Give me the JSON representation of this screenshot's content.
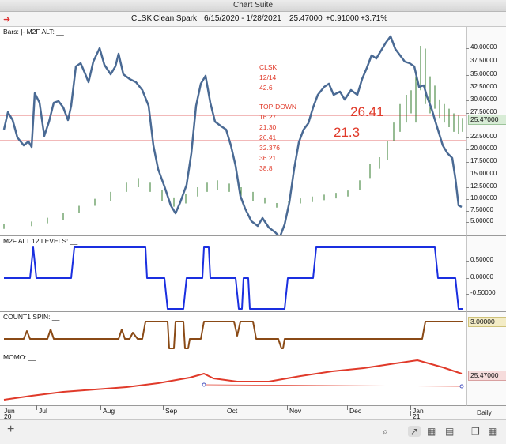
{
  "window": {
    "title": "Chart Suite"
  },
  "header": {
    "symbol": "CLSK",
    "name": "Clean Spark",
    "date_range": "6/15/2020 - 1/28/2021",
    "last_price": "25.47000",
    "change": "+0.91000",
    "change_pct": "+3.71%"
  },
  "price_pane": {
    "label": "Bars: |-   M2F ALT: __",
    "y_ticks": [
      "40.00000",
      "37.50000",
      "35.00000",
      "32.50000",
      "30.00000",
      "27.50000",
      "25.00000",
      "22.50000",
      "20.00000",
      "17.50000",
      "15.00000",
      "12.50000",
      "10.00000",
      "7.50000",
      "5.00000"
    ],
    "last_value": "25.47000",
    "annotation_lines": [
      "CLSK",
      "12/14",
      "42.6",
      "",
      "TOP-DOWN",
      "16.27",
      "21.30",
      "26.41",
      "32.376",
      "36.21",
      "38.8"
    ],
    "level_label_1": "26.41",
    "level_label_2": "21.3"
  },
  "levels_pane": {
    "label": "M2F ALT 12 LEVELS: __",
    "y_ticks": [
      "0.50000",
      "0.00000",
      "-0.50000"
    ]
  },
  "spin_pane": {
    "label": "COUNT1 SPIN: __",
    "last_value": "3.00000"
  },
  "momo_pane": {
    "label": "MOMO: __",
    "last_value": "25.47000"
  },
  "date_axis": {
    "months": [
      {
        "label": "Jun",
        "year": "20"
      },
      {
        "label": "Jul",
        "year": ""
      },
      {
        "label": "Aug",
        "year": ""
      },
      {
        "label": "Sep",
        "year": ""
      },
      {
        "label": "Oct",
        "year": ""
      },
      {
        "label": "Nov",
        "year": ""
      },
      {
        "label": "Dec",
        "year": ""
      },
      {
        "label": "Jan",
        "year": "21"
      }
    ],
    "period": "Daily"
  },
  "colors": {
    "oscillator": "#4a6a94",
    "bars": "#2f7a2a",
    "levels": "#1a2fe0",
    "spin": "#8a4a16",
    "momo": "#e03a2a",
    "hline": "#d44"
  },
  "toolbar": {
    "icons": [
      "add-icon",
      "search-icon",
      "line-chart-icon",
      "bar-chart-icon",
      "panel-icon",
      "book-icon",
      "grid-icon"
    ]
  }
}
